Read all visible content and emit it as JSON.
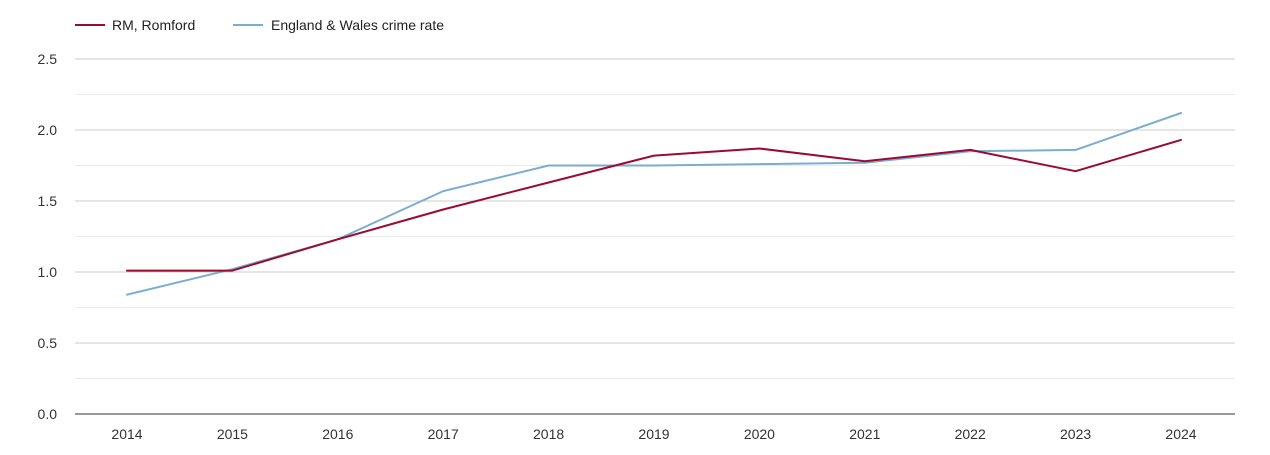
{
  "chart_data": {
    "type": "line",
    "title": "",
    "xlabel": "",
    "ylabel": "",
    "x": [
      "2014",
      "2015",
      "2016",
      "2017",
      "2018",
      "2019",
      "2020",
      "2021",
      "2022",
      "2023",
      "2024"
    ],
    "ylim": [
      0,
      2.5
    ],
    "y_ticks": [
      "0.0",
      "0.5",
      "1.0",
      "1.5",
      "2.0",
      "2.5"
    ],
    "grid": true,
    "legend_position": "top-left",
    "series": [
      {
        "name": "RM, Romford",
        "color": "#9b0a31",
        "values": [
          1.01,
          1.01,
          1.23,
          1.44,
          1.63,
          1.82,
          1.87,
          1.78,
          1.86,
          1.71,
          1.93
        ],
        "first_point_flat": true
      },
      {
        "name": "England & Wales crime rate",
        "color": "#7aaed0",
        "values": [
          0.84,
          1.02,
          1.23,
          1.57,
          1.75,
          1.75,
          1.76,
          1.77,
          1.85,
          1.86,
          2.12
        ]
      }
    ]
  }
}
